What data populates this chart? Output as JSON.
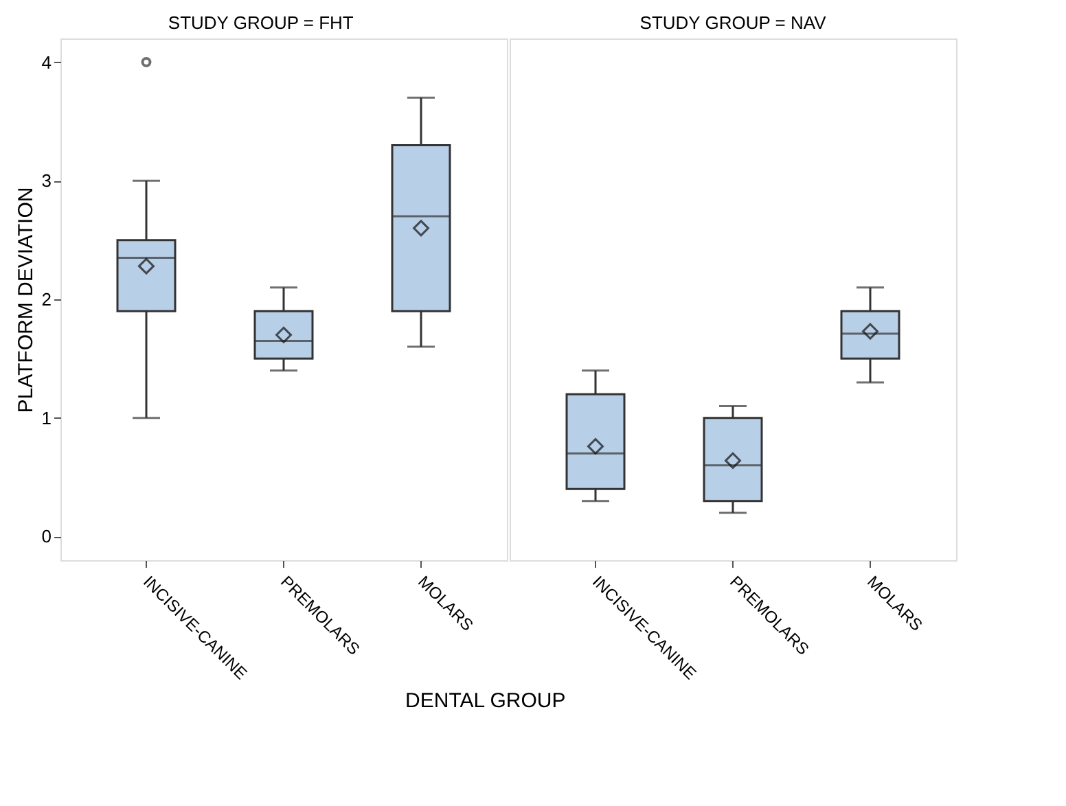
{
  "chart_data": [
    {
      "type": "box",
      "title": "STUDY GROUP = FHT",
      "xlabel": "DENTAL GROUP",
      "ylabel": "PLATFORM DEVIATION",
      "categories": [
        "INCISIVE-CANINE",
        "PREMOLARS",
        "MOLARS"
      ],
      "ylim": [
        -0.2,
        4.2
      ],
      "yticks": [
        0,
        1,
        2,
        3,
        4
      ],
      "grid": false,
      "series": [
        {
          "color": "#b8cfe8",
          "boxes": [
            {
              "low": 1.0,
              "q1": 1.9,
              "median": 2.35,
              "q3": 2.5,
              "high": 3.0,
              "mean": 2.28,
              "outliers": [
                4.0
              ]
            },
            {
              "low": 1.4,
              "q1": 1.5,
              "median": 1.65,
              "q3": 1.9,
              "high": 2.1,
              "mean": 1.7
            },
            {
              "low": 1.6,
              "q1": 1.9,
              "median": 2.7,
              "q3": 3.3,
              "high": 3.7,
              "mean": 2.6
            }
          ]
        }
      ]
    },
    {
      "type": "box",
      "title": "STUDY GROUP = NAV",
      "categories": [
        "INCISIVE-CANINE",
        "PREMOLARS",
        "MOLARS"
      ],
      "ylim": [
        -0.2,
        4.2
      ],
      "yticks": [
        0,
        1,
        2,
        3,
        4
      ],
      "grid": false,
      "tick_labels": "x",
      "series": [
        {
          "color": "#b8cfe8",
          "boxes": [
            {
              "low": 0.3,
              "q1": 0.4,
              "median": 0.7,
              "q3": 1.2,
              "high": 1.4,
              "mean": 0.76
            },
            {
              "low": 0.2,
              "q1": 0.3,
              "median": 0.6,
              "q3": 1.0,
              "high": 1.1,
              "mean": 0.64
            },
            {
              "low": 1.3,
              "q1": 1.5,
              "median": 1.71,
              "q3": 1.9,
              "high": 2.1,
              "mean": 1.73
            }
          ]
        }
      ]
    }
  ]
}
